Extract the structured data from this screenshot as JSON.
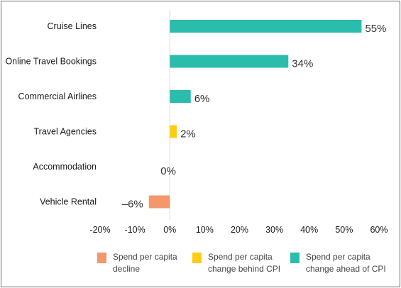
{
  "chart_data": {
    "type": "bar",
    "orientation": "horizontal",
    "categories": [
      "Cruise Lines",
      "Online Travel Bookings",
      "Commercial Airlines",
      "Travel Agencies",
      "Accommodation",
      "Vehicle Rental"
    ],
    "values": [
      55,
      34,
      6,
      2,
      0,
      -6
    ],
    "value_labels": [
      "55%",
      "34%",
      "6%",
      "2%",
      "0%",
      "–6%"
    ],
    "bar_groups": [
      "ahead",
      "ahead",
      "ahead",
      "behind",
      "behind",
      "decline"
    ],
    "xlim": [
      -20,
      60
    ],
    "xticks": [
      -20,
      -10,
      0,
      10,
      20,
      30,
      40,
      50,
      60
    ],
    "xtick_labels": [
      "-20%",
      "-10%",
      "0%",
      "10%",
      "20%",
      "30%",
      "40%",
      "50%",
      "60%"
    ],
    "grid": false,
    "legend_position": "bottom",
    "legend": [
      {
        "key": "decline",
        "lines": [
          "Spend per capita",
          "decline"
        ],
        "color": "#f4976b"
      },
      {
        "key": "behind",
        "lines": [
          "Spend per capita",
          "change behind CPI"
        ],
        "color": "#fccd13"
      },
      {
        "key": "ahead",
        "lines": [
          "Spend per capita",
          "change ahead of CPI"
        ],
        "color": "#2bbdac"
      }
    ],
    "colors": {
      "decline": "#f4976b",
      "behind": "#fccd13",
      "ahead": "#2bbdac",
      "axis": "#d9d9d9"
    }
  }
}
